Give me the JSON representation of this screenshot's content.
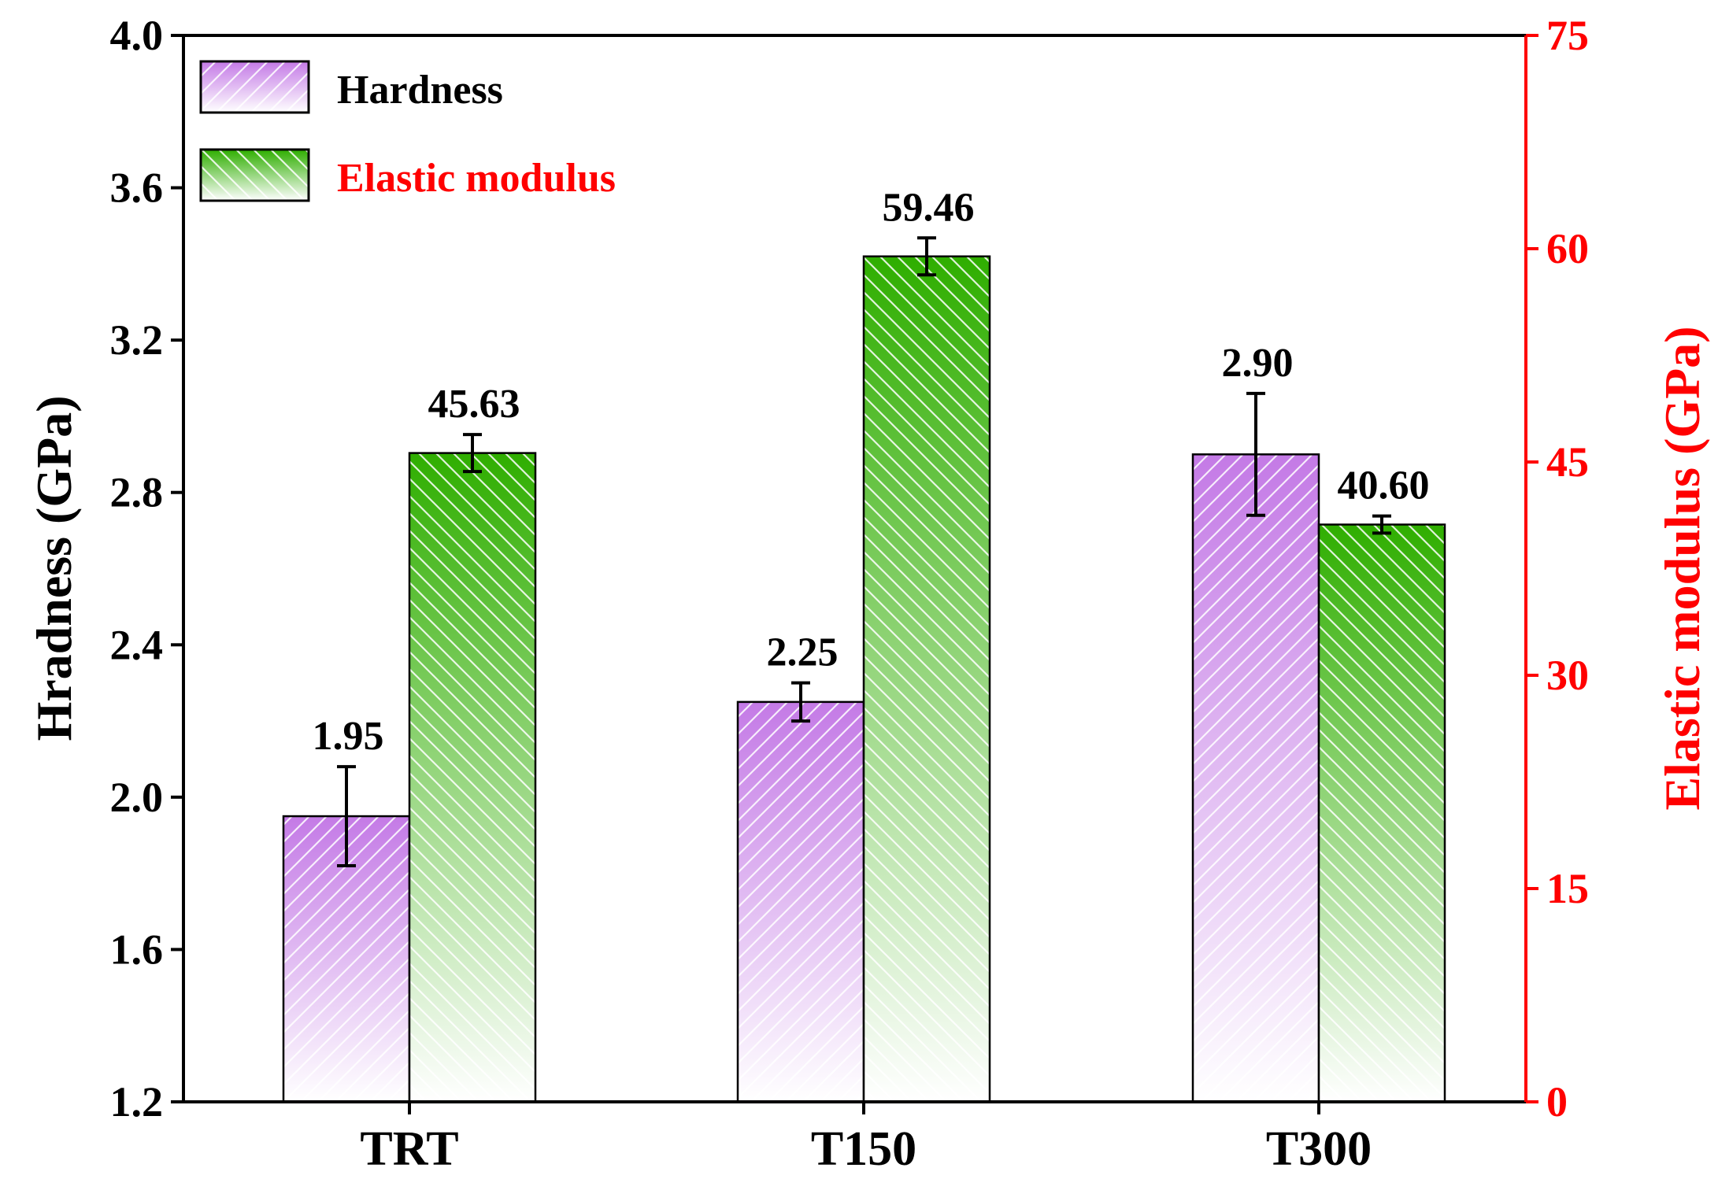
{
  "chart_data": {
    "type": "bar",
    "categories": [
      "TRT",
      "T150",
      "T300"
    ],
    "series": [
      {
        "name": "Hardness",
        "axis": "left",
        "values": [
          1.95,
          2.25,
          2.9
        ],
        "errors": [
          0.13,
          0.05,
          0.16
        ],
        "labels": [
          "1.95",
          "2.25",
          "2.90"
        ],
        "color": "#cc88ee"
      },
      {
        "name": "Elastic modulus",
        "axis": "right",
        "values": [
          45.63,
          59.46,
          40.6
        ],
        "errors": [
          1.3,
          1.3,
          0.6
        ],
        "labels": [
          "45.63",
          "59.46",
          "40.60"
        ],
        "color": "#33aa00"
      }
    ],
    "y_left": {
      "label": "Hradness (GPa)",
      "range": [
        1.2,
        4.0
      ],
      "ticks": [
        "1.2",
        "1.6",
        "2.0",
        "2.4",
        "2.8",
        "3.2",
        "3.6",
        "4.0"
      ],
      "color": "#000000"
    },
    "y_right": {
      "label": "Elastic modulus (GPa)",
      "range": [
        0,
        75
      ],
      "ticks": [
        "0",
        "15",
        "30",
        "45",
        "60",
        "75"
      ],
      "color": "#ff0000"
    },
    "legend": {
      "position": "top-left",
      "entries": [
        {
          "label": "Hardness",
          "color": "#000000"
        },
        {
          "label": "Elastic modulus",
          "color": "#ff0000"
        }
      ]
    },
    "grid": false
  }
}
